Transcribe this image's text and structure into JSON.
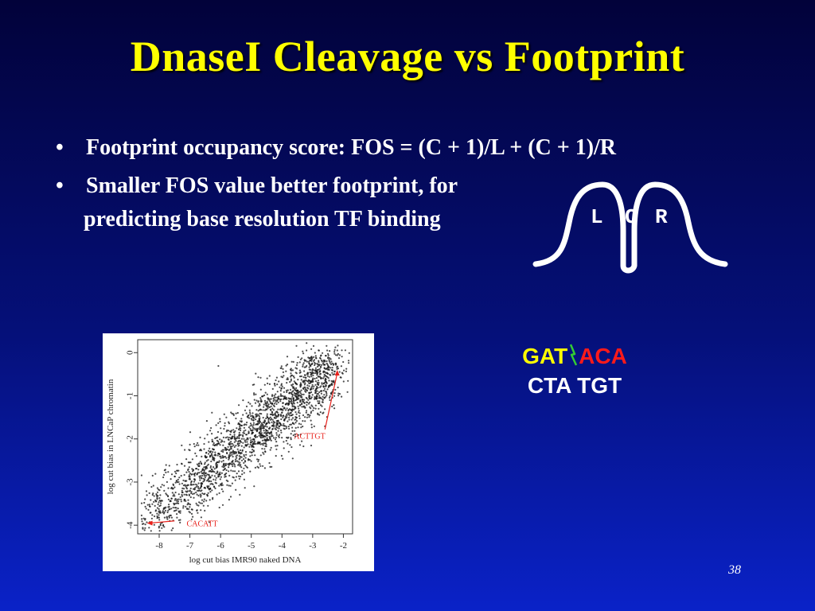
{
  "slide": {
    "title": "DnaseI Cleavage vs Footprint",
    "bullets": [
      {
        "marker": "•",
        "text": "Footprint occupancy score: FOS = (C + 1)/L + (C + 1)/R"
      },
      {
        "marker": "•",
        "text": "Smaller FOS value better footprint, for"
      }
    ],
    "bullet_continuation": "predicting base resolution TF binding",
    "page_number": "38"
  },
  "lcr": {
    "labels": [
      "L",
      "C",
      "R"
    ],
    "stroke_color": "#ffffff"
  },
  "sequence": {
    "top_left": "GAT",
    "top_right": "ACA",
    "bottom": "CTA TGT",
    "top_left_color": "#ffff00",
    "top_right_color": "#ff1a1a",
    "cut_mark_color": "#33cc33"
  },
  "chart_data": {
    "type": "scatter",
    "xlabel": "log cut bias IMR90 naked DNA",
    "ylabel": "log cut bias in LNCaP chromatin",
    "xlim": [
      -8.7,
      -1.7
    ],
    "ylim": [
      -4.2,
      0.3
    ],
    "x_ticks": [
      -8,
      -7,
      -6,
      -5,
      -4,
      -3,
      -2
    ],
    "y_ticks": [
      0,
      -1,
      -2,
      -3,
      -4
    ],
    "trend": {
      "x_start": -8.5,
      "y_start": -4.0,
      "x_end": -2.3,
      "y_end": -0.3
    },
    "point_count": 2200,
    "annotations": [
      {
        "text": "ACTTGT",
        "x": -2.2,
        "y": -0.4,
        "color": "#e8201a"
      },
      {
        "text": "CACATT",
        "x": -8.4,
        "y": -3.95,
        "color": "#e8201a"
      }
    ]
  }
}
